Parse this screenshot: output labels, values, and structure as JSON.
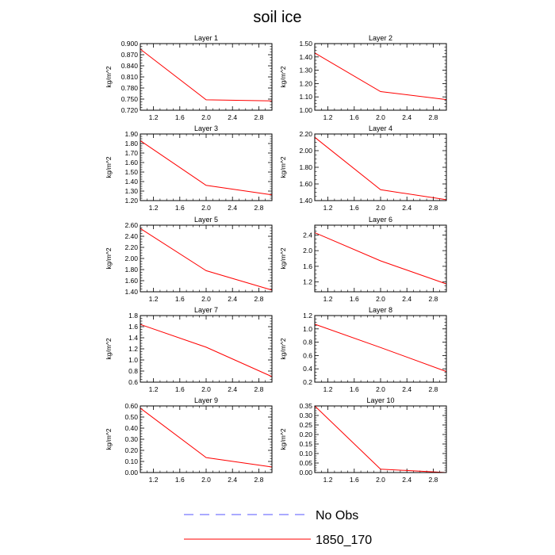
{
  "title": "soil ice",
  "colors": {
    "series": "#ff0000",
    "obs": "#5555ff",
    "frame": "#000000"
  },
  "legend": [
    {
      "label": "No Obs",
      "style": "dashed",
      "color": "#5555ff"
    },
    {
      "label": "1850_170",
      "style": "solid",
      "color": "#ff0000"
    }
  ],
  "chart_data": [
    {
      "type": "line",
      "title": "Layer 1",
      "ylabel": "kg/m^2",
      "x": [
        1.0,
        2.0,
        3.0
      ],
      "series": [
        {
          "name": "1850_170",
          "values": [
            0.885,
            0.748,
            0.745
          ]
        }
      ],
      "xlim": [
        1.0,
        3.0
      ],
      "xticks": [
        "1.2",
        "1.6",
        "2.0",
        "2.4",
        "2.8"
      ],
      "ylim": [
        0.72,
        0.9
      ],
      "yticks": [
        "0.720",
        "0.750",
        "0.780",
        "0.810",
        "0.840",
        "0.870",
        "0.900"
      ]
    },
    {
      "type": "line",
      "title": "Layer 2",
      "ylabel": "kg/m^2",
      "x": [
        1.0,
        2.0,
        3.0
      ],
      "series": [
        {
          "name": "1850_170",
          "values": [
            1.43,
            1.14,
            1.08
          ]
        }
      ],
      "xlim": [
        1.0,
        3.0
      ],
      "xticks": [
        "1.2",
        "1.6",
        "2.0",
        "2.4",
        "2.8"
      ],
      "ylim": [
        1.0,
        1.5
      ],
      "yticks": [
        "1.00",
        "1.10",
        "1.20",
        "1.30",
        "1.40",
        "1.50"
      ]
    },
    {
      "type": "line",
      "title": "Layer 3",
      "ylabel": "kg/m^2",
      "x": [
        1.0,
        2.0,
        3.0
      ],
      "series": [
        {
          "name": "1850_170",
          "values": [
            1.83,
            1.36,
            1.26
          ]
        }
      ],
      "xlim": [
        1.0,
        3.0
      ],
      "xticks": [
        "1.2",
        "1.6",
        "2.0",
        "2.4",
        "2.8"
      ],
      "ylim": [
        1.2,
        1.9
      ],
      "yticks": [
        "1.20",
        "1.30",
        "1.40",
        "1.50",
        "1.60",
        "1.70",
        "1.80",
        "1.90"
      ]
    },
    {
      "type": "line",
      "title": "Layer 4",
      "ylabel": "kg/m^2",
      "x": [
        1.0,
        2.0,
        3.0
      ],
      "series": [
        {
          "name": "1850_170",
          "values": [
            2.16,
            1.53,
            1.41
          ]
        }
      ],
      "xlim": [
        1.0,
        3.0
      ],
      "xticks": [
        "1.2",
        "1.6",
        "2.0",
        "2.4",
        "2.8"
      ],
      "ylim": [
        1.4,
        2.2
      ],
      "yticks": [
        "1.40",
        "1.60",
        "1.80",
        "2.00",
        "2.20"
      ]
    },
    {
      "type": "line",
      "title": "Layer 5",
      "ylabel": "kg/m^2",
      "x": [
        1.0,
        2.0,
        3.0
      ],
      "series": [
        {
          "name": "1850_170",
          "values": [
            2.54,
            1.78,
            1.43
          ]
        }
      ],
      "xlim": [
        1.0,
        3.0
      ],
      "xticks": [
        "1.2",
        "1.6",
        "2.0",
        "2.4",
        "2.8"
      ],
      "ylim": [
        1.4,
        2.6
      ],
      "yticks": [
        "1.40",
        "1.60",
        "1.80",
        "2.00",
        "2.20",
        "2.40",
        "2.60"
      ]
    },
    {
      "type": "line",
      "title": "Layer 6",
      "ylabel": "kg/m^2",
      "x": [
        1.0,
        2.0,
        3.0
      ],
      "series": [
        {
          "name": "1850_170",
          "values": [
            2.46,
            1.74,
            1.15
          ]
        }
      ],
      "xlim": [
        1.0,
        3.0
      ],
      "xticks": [
        "1.2",
        "1.6",
        "2.0",
        "2.4",
        "2.8"
      ],
      "ylim": [
        0.95,
        2.65
      ],
      "yticks": [
        "1.2",
        "1.6",
        "2.0",
        "2.4"
      ]
    },
    {
      "type": "line",
      "title": "Layer 7",
      "ylabel": "kg/m^2",
      "x": [
        1.0,
        2.0,
        3.0
      ],
      "series": [
        {
          "name": "1850_170",
          "values": [
            1.64,
            1.23,
            0.7
          ]
        }
      ],
      "xlim": [
        1.0,
        3.0
      ],
      "xticks": [
        "1.2",
        "1.6",
        "2.0",
        "2.4",
        "2.8"
      ],
      "ylim": [
        0.6,
        1.8
      ],
      "yticks": [
        "0.6",
        "0.8",
        "1.0",
        "1.2",
        "1.4",
        "1.6",
        "1.8"
      ]
    },
    {
      "type": "line",
      "title": "Layer 8",
      "ylabel": "kg/m^2",
      "x": [
        1.0,
        2.0,
        3.0
      ],
      "series": [
        {
          "name": "1850_170",
          "values": [
            1.07,
            0.72,
            0.36
          ]
        }
      ],
      "xlim": [
        1.0,
        3.0
      ],
      "xticks": [
        "1.2",
        "1.6",
        "2.0",
        "2.4",
        "2.8"
      ],
      "ylim": [
        0.2,
        1.2
      ],
      "yticks": [
        "0.2",
        "0.4",
        "0.6",
        "0.8",
        "1.0",
        "1.2"
      ]
    },
    {
      "type": "line",
      "title": "Layer 9",
      "ylabel": "kg/m^2",
      "x": [
        1.0,
        2.0,
        3.0
      ],
      "series": [
        {
          "name": "1850_170",
          "values": [
            0.58,
            0.135,
            0.05
          ]
        }
      ],
      "xlim": [
        1.0,
        3.0
      ],
      "xticks": [
        "1.2",
        "1.6",
        "2.0",
        "2.4",
        "2.8"
      ],
      "ylim": [
        0.0,
        0.6
      ],
      "yticks": [
        "0.00",
        "0.10",
        "0.20",
        "0.30",
        "0.40",
        "0.50",
        "0.60"
      ]
    },
    {
      "type": "line",
      "title": "Layer 10",
      "ylabel": "kg/m^2",
      "x": [
        1.0,
        2.0,
        3.0
      ],
      "series": [
        {
          "name": "1850_170",
          "values": [
            0.35,
            0.018,
            0.0
          ]
        }
      ],
      "xlim": [
        1.0,
        3.0
      ],
      "xticks": [
        "1.2",
        "1.6",
        "2.0",
        "2.4",
        "2.8"
      ],
      "ylim": [
        0.0,
        0.35
      ],
      "yticks": [
        "0.00",
        "0.05",
        "0.10",
        "0.15",
        "0.20",
        "0.25",
        "0.30",
        "0.35"
      ]
    }
  ]
}
